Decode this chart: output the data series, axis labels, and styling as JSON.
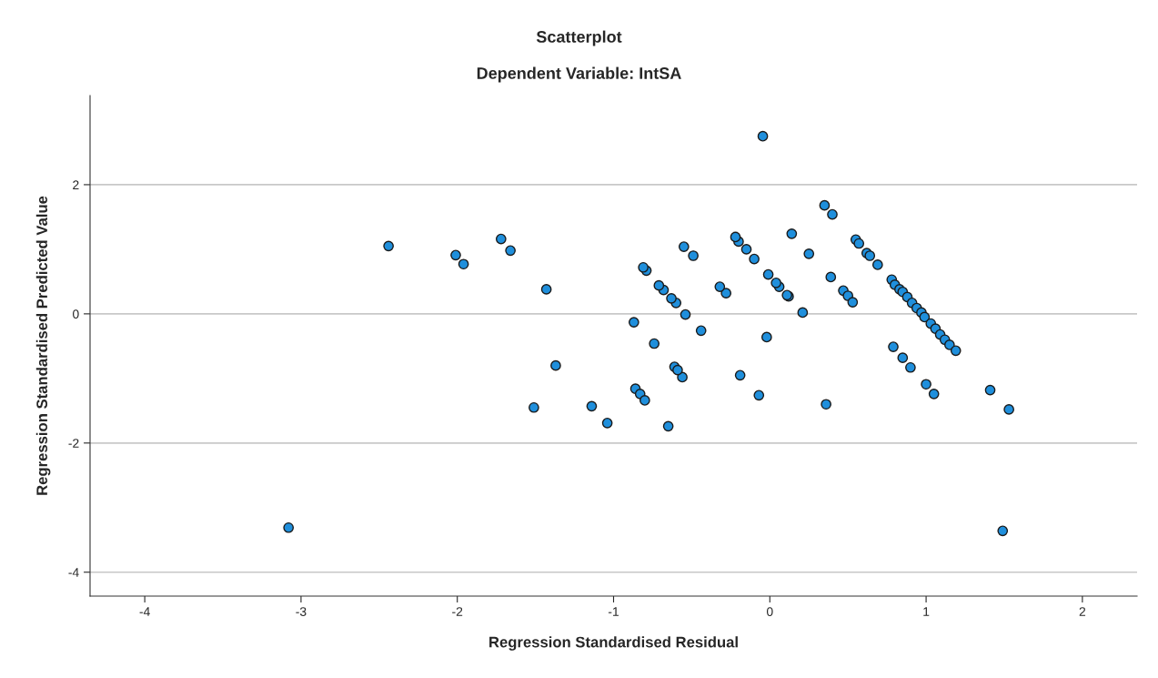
{
  "chart_data": {
    "type": "scatter",
    "title": "Scatterplot",
    "subtitle": "Dependent Variable: IntSA",
    "xlabel": "Regression Standardised Residual",
    "ylabel": "Regression Standardised Predicted Value",
    "xlim": [
      -4.35,
      2.35
    ],
    "xticks": [
      -4,
      -3,
      -2,
      -1,
      0,
      1,
      2
    ],
    "ylim": [
      -4.37,
      3.38
    ],
    "yticks": [
      -4,
      -2,
      0,
      2
    ],
    "grid": "y",
    "marker": "circle",
    "series": [
      {
        "color": "#1f8fdc",
        "x": [
          -0.045,
          0.35,
          0.4,
          0.14,
          0.25,
          0.39,
          0.47,
          0.5,
          0.53,
          0.55,
          0.57,
          0.62,
          0.64,
          0.69,
          0.78,
          0.8,
          0.83,
          0.85,
          0.88,
          0.91,
          0.94,
          0.97,
          0.99,
          1.03,
          1.06,
          1.09,
          1.12,
          1.15,
          1.19,
          0.79,
          0.85,
          0.9,
          1.0,
          1.05,
          1.41,
          1.53,
          0.36,
          0.21,
          0.12,
          0.11,
          0.06,
          0.04,
          -0.01,
          -0.02,
          -0.07,
          -0.19,
          -0.1,
          -0.15,
          -0.2,
          -0.22,
          -0.28,
          -0.32,
          -0.49,
          -0.55,
          -0.44,
          -0.54,
          -0.6,
          -0.63,
          -0.68,
          -0.71,
          -0.79,
          -0.81,
          -0.74,
          -0.87,
          -0.61,
          -0.56,
          -0.59,
          -0.86,
          -0.83,
          -0.8,
          -0.65,
          -1.14,
          -1.04,
          -1.51,
          -1.37,
          -1.43,
          -1.72,
          -1.66,
          -2.01,
          -1.96,
          -2.44,
          -3.08,
          1.49
        ],
        "values": [
          2.75,
          1.68,
          1.54,
          1.24,
          0.93,
          0.57,
          0.36,
          0.28,
          0.18,
          1.15,
          1.09,
          0.94,
          0.9,
          0.76,
          0.53,
          0.45,
          0.38,
          0.34,
          0.26,
          0.17,
          0.09,
          0.02,
          -0.05,
          -0.15,
          -0.23,
          -0.32,
          -0.4,
          -0.48,
          -0.57,
          -0.51,
          -0.68,
          -0.83,
          -1.09,
          -1.24,
          -1.18,
          -1.48,
          -1.4,
          0.02,
          0.27,
          0.29,
          0.42,
          0.48,
          0.61,
          -0.36,
          -1.26,
          -0.95,
          0.85,
          1.0,
          1.12,
          1.19,
          0.32,
          0.42,
          0.9,
          1.04,
          -0.26,
          -0.01,
          0.17,
          0.24,
          0.37,
          0.44,
          0.67,
          0.72,
          -0.46,
          -0.13,
          -0.82,
          -0.98,
          -0.87,
          -1.16,
          -1.24,
          -1.34,
          -1.74,
          -1.43,
          -1.69,
          -1.45,
          -0.8,
          0.38,
          1.16,
          0.98,
          0.91,
          0.77,
          1.05,
          -3.31,
          -3.36
        ]
      }
    ]
  }
}
